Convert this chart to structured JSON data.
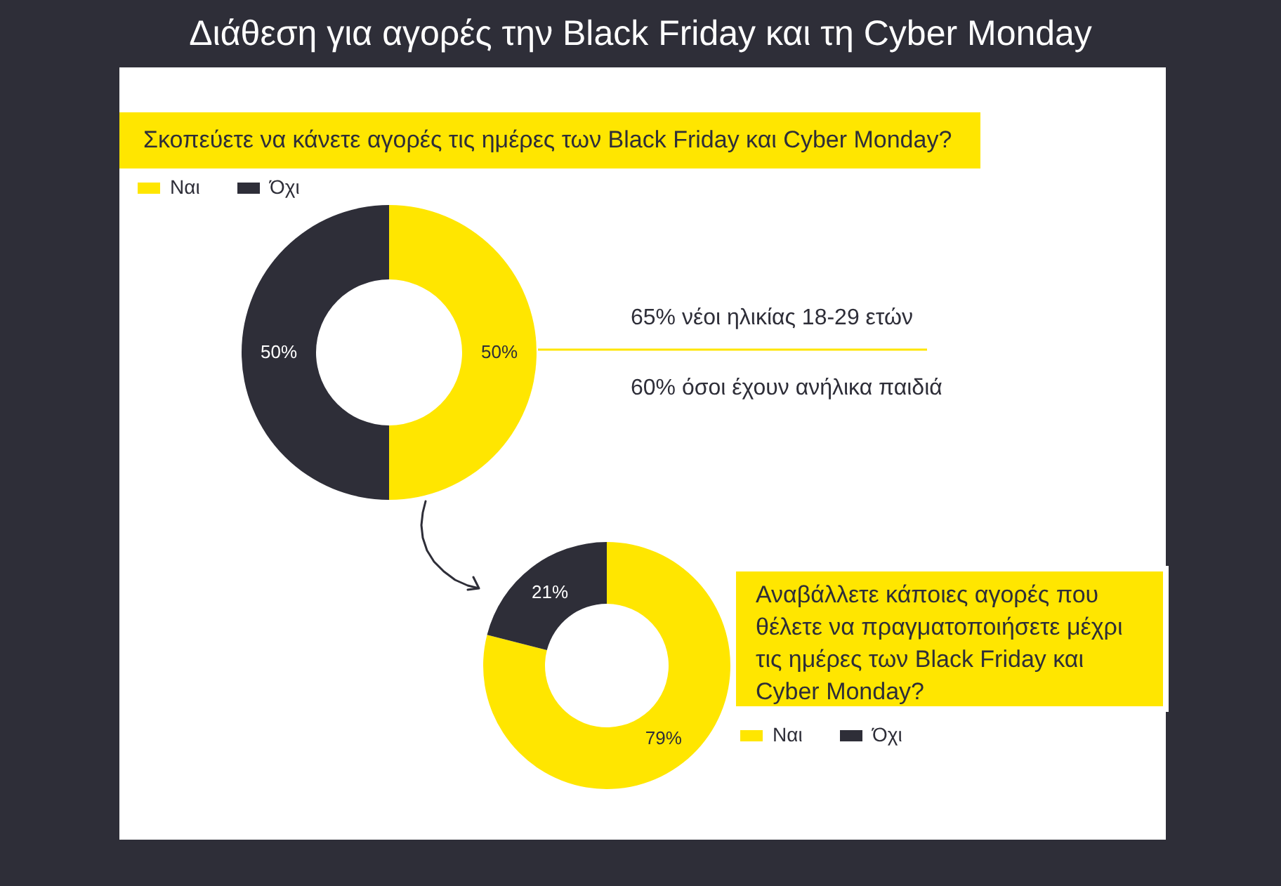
{
  "chart_data": [
    {
      "type": "donut",
      "title": "Διάθεση για αγορές την Black Friday και τη Cyber Monday",
      "subtitle": "Σκοπεύετε να κάνετε αγορές τις ημέρες των Black Friday και Cyber Monday?",
      "categories": [
        "Ναι",
        "Όχι"
      ],
      "values": [
        50,
        50
      ],
      "colors": [
        "#ffe600",
        "#2e2e38"
      ],
      "value_labels": [
        "50%",
        "50%"
      ],
      "legend": "top left"
    },
    {
      "type": "other",
      "annotations": [
        "65% νέοι ηλικίας 18-29 ετών",
        "60% όσοι έχουν ανήλικα παιδιά"
      ]
    },
    {
      "type": "donut",
      "title": "Αναβάλλετε κάποιες αγορές που θέλετε να πραγματοποιήσετε μέχρι τις ημέρες των Black Friday και Cyber Monday?",
      "categories": [
        "Ναι",
        "Όχι"
      ],
      "values": [
        79,
        21
      ],
      "colors": [
        "#ffe600",
        "#2e2e38"
      ],
      "value_labels": [
        "79%",
        "21%"
      ],
      "legend": "bottom right"
    }
  ]
}
